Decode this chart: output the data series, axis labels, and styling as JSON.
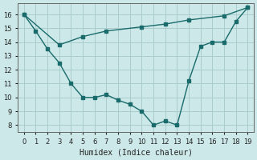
{
  "xlabel": "Humidex (Indice chaleur)",
  "background_color": "#cce8e8",
  "grid_color": "#aacccc",
  "line_color": "#1a6b6b",
  "xlim": [
    -0.5,
    19.5
  ],
  "ylim": [
    7.5,
    16.8
  ],
  "yticks": [
    8,
    9,
    10,
    11,
    12,
    13,
    14,
    15,
    16
  ],
  "xticks": [
    0,
    1,
    2,
    3,
    4,
    5,
    6,
    7,
    8,
    9,
    10,
    11,
    12,
    13,
    14,
    15,
    16,
    17,
    18,
    19
  ],
  "line1_x": [
    0,
    1,
    2,
    3,
    4,
    5,
    6,
    7,
    8,
    9,
    10,
    11,
    12,
    13,
    14,
    15,
    16,
    17,
    18,
    19
  ],
  "line1_y": [
    16.0,
    14.8,
    13.5,
    12.5,
    11.0,
    10.0,
    10.0,
    10.2,
    9.8,
    9.5,
    9.0,
    8.0,
    8.3,
    8.0,
    11.2,
    13.7,
    14.0,
    14.0,
    15.5,
    16.5
  ],
  "line2_x": [
    0,
    3,
    5,
    7,
    10,
    12,
    14,
    17,
    19
  ],
  "line2_y": [
    16.0,
    13.8,
    14.4,
    14.8,
    15.1,
    15.3,
    15.6,
    15.9,
    16.5
  ]
}
